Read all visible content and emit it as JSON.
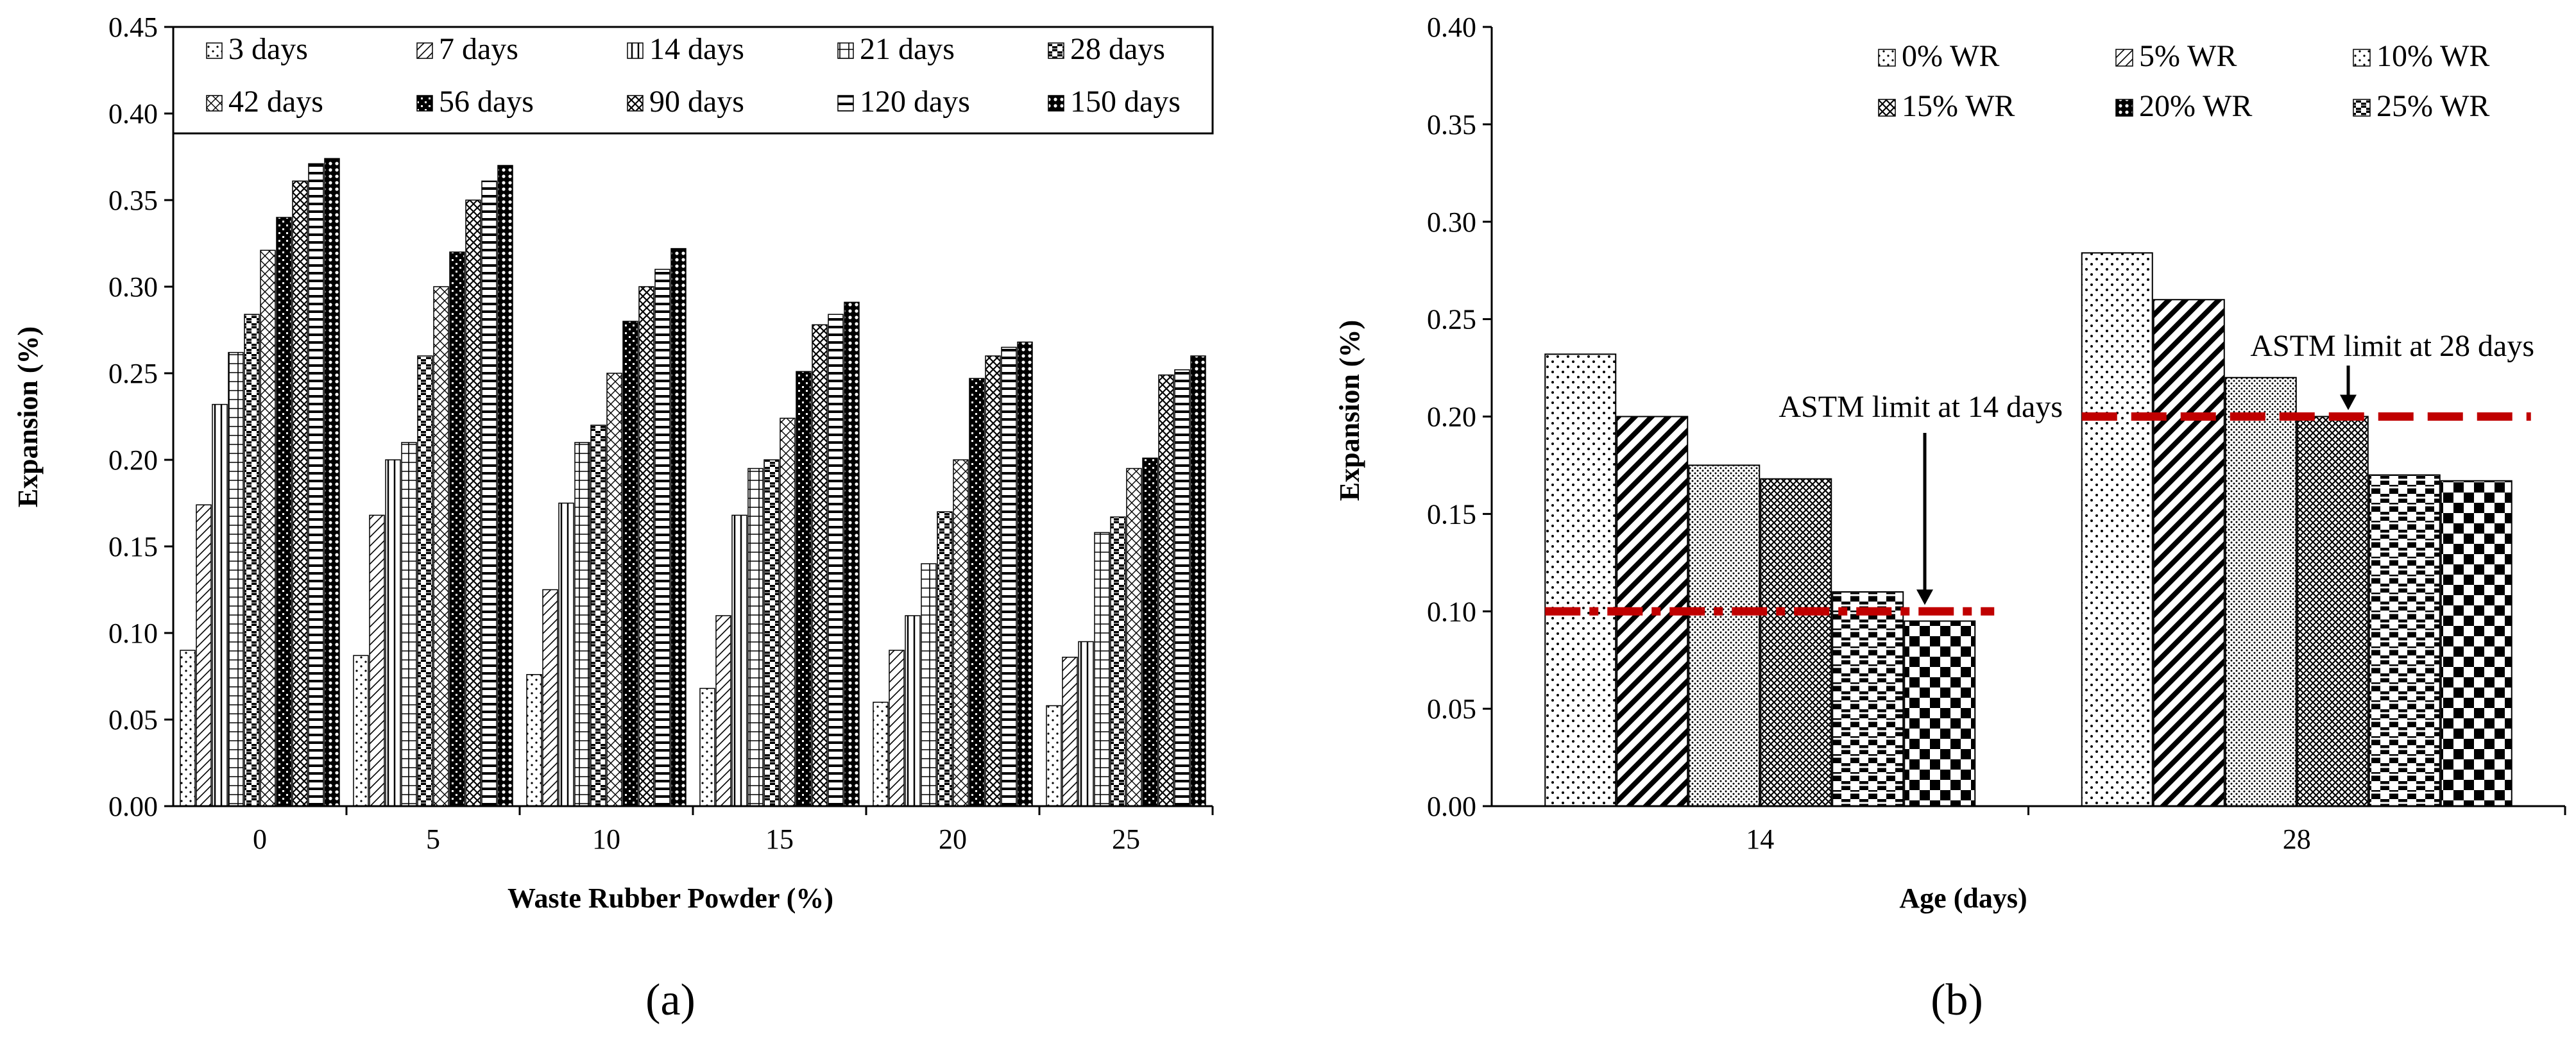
{
  "chart_data": [
    {
      "type": "bar",
      "panel_label": "(a)",
      "title": "",
      "xlabel": "Waste Rubber Powder (%)",
      "ylabel": "Expansion (%)",
      "ylim": [
        0,
        0.45
      ],
      "yticks": [
        "0.00",
        "0.05",
        "0.10",
        "0.15",
        "0.20",
        "0.25",
        "0.30",
        "0.35",
        "0.40",
        "0.45"
      ],
      "categories": [
        "0",
        "5",
        "10",
        "15",
        "20",
        "25"
      ],
      "legend_placement": "top",
      "series": [
        {
          "name": "3 days",
          "values": [
            0.09,
            0.087,
            0.076,
            0.068,
            0.06,
            0.058
          ]
        },
        {
          "name": "7 days",
          "values": [
            0.174,
            0.168,
            0.125,
            0.11,
            0.09,
            0.086
          ]
        },
        {
          "name": "14 days",
          "values": [
            0.232,
            0.2,
            0.175,
            0.168,
            0.11,
            0.095
          ]
        },
        {
          "name": "21 days",
          "values": [
            0.262,
            0.21,
            0.21,
            0.195,
            0.14,
            0.158
          ]
        },
        {
          "name": "28 days",
          "values": [
            0.284,
            0.26,
            0.22,
            0.2,
            0.17,
            0.167
          ]
        },
        {
          "name": "42 days",
          "values": [
            0.321,
            0.3,
            0.25,
            0.224,
            0.2,
            0.195
          ]
        },
        {
          "name": "56 days",
          "values": [
            0.34,
            0.32,
            0.28,
            0.251,
            0.247,
            0.201
          ]
        },
        {
          "name": "90 days",
          "values": [
            0.361,
            0.35,
            0.3,
            0.278,
            0.26,
            0.249
          ]
        },
        {
          "name": "120 days",
          "values": [
            0.371,
            0.361,
            0.31,
            0.284,
            0.265,
            0.252
          ]
        },
        {
          "name": "150 days",
          "values": [
            0.374,
            0.37,
            0.322,
            0.291,
            0.268,
            0.26
          ]
        }
      ]
    },
    {
      "type": "bar",
      "panel_label": "(b)",
      "title": "",
      "xlabel": "Age (days)",
      "ylabel": "Expansion (%)",
      "ylim": [
        0,
        0.4
      ],
      "yticks": [
        "0.00",
        "0.05",
        "0.10",
        "0.15",
        "0.20",
        "0.25",
        "0.30",
        "0.35",
        "0.40"
      ],
      "categories": [
        "14",
        "28"
      ],
      "legend_placement": "top-right",
      "series": [
        {
          "name": "0% WR",
          "values": [
            0.232,
            0.284
          ]
        },
        {
          "name": "5% WR",
          "values": [
            0.2,
            0.26
          ]
        },
        {
          "name": "10% WR",
          "values": [
            0.175,
            0.22
          ]
        },
        {
          "name": "15% WR",
          "values": [
            0.168,
            0.2
          ]
        },
        {
          "name": "20% WR",
          "values": [
            0.11,
            0.17
          ]
        },
        {
          "name": "25% WR",
          "values": [
            0.095,
            0.167
          ]
        }
      ],
      "limit_lines": [
        {
          "category": "14",
          "value": 0.1,
          "label": "ASTM limit at 14 days"
        },
        {
          "category": "28",
          "value": 0.2,
          "label": "ASTM limit at 28 days"
        }
      ],
      "limit_color": "#c00000"
    }
  ]
}
